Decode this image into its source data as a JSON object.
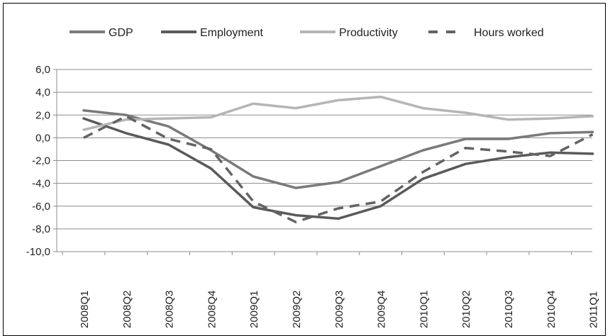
{
  "chart_data": {
    "type": "line",
    "title": "",
    "xlabel": "",
    "ylabel": "",
    "categories": [
      "2008Q1",
      "2008Q2",
      "2008Q3",
      "2008Q4",
      "2009Q1",
      "2009Q2",
      "2009Q3",
      "2009Q4",
      "2010Q1",
      "2010Q2",
      "2010Q3",
      "2010Q4",
      "2011Q1"
    ],
    "ylim": [
      -10,
      6
    ],
    "yticks": [
      6,
      4,
      2,
      0,
      -2,
      -4,
      -6,
      -8,
      -10
    ],
    "ytick_labels": [
      "6,0",
      "4,0",
      "2,0",
      "0,0",
      "-2,0",
      "-4,0",
      "-6,0",
      "-8,0",
      "-10,0"
    ],
    "grid": true,
    "legend_position": "top",
    "series": [
      {
        "name": "GDP",
        "color": "#7a7a7a",
        "dash": false,
        "values": [
          2.4,
          2.0,
          1.0,
          -1.1,
          -3.4,
          -4.4,
          -3.9,
          -2.5,
          -1.1,
          -0.1,
          -0.1,
          0.4,
          0.5
        ]
      },
      {
        "name": "Employment",
        "color": "#5a5a5a",
        "dash": false,
        "values": [
          1.7,
          0.4,
          -0.6,
          -2.7,
          -6.1,
          -6.8,
          -7.1,
          -6.0,
          -3.6,
          -2.3,
          -1.7,
          -1.3,
          -1.4
        ]
      },
      {
        "name": "Productivity",
        "color": "#b5b5b5",
        "dash": false,
        "values": [
          0.7,
          1.6,
          1.7,
          1.8,
          3.0,
          2.6,
          3.3,
          3.6,
          2.6,
          2.2,
          1.6,
          1.7,
          1.9
        ]
      },
      {
        "name": "Hours worked",
        "color": "#636363",
        "dash": true,
        "values": [
          0.0,
          1.9,
          -0.1,
          -1.0,
          -5.6,
          -7.4,
          -6.2,
          -5.6,
          -3.0,
          -0.9,
          -1.2,
          -1.6,
          0.3
        ]
      }
    ]
  }
}
